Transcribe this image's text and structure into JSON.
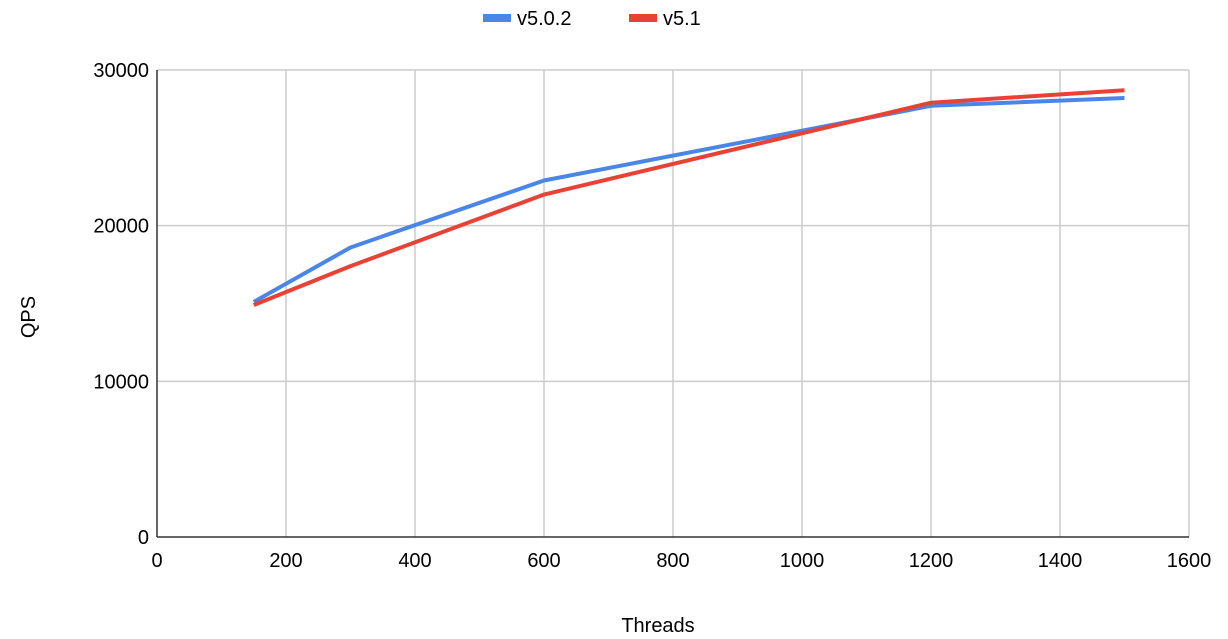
{
  "chart_data": {
    "type": "line",
    "xlabel": "Threads",
    "ylabel": "QPS",
    "xlim": [
      0,
      1600
    ],
    "ylim": [
      0,
      30000
    ],
    "x_ticks": [
      0,
      200,
      400,
      600,
      800,
      1000,
      1200,
      1400,
      1600
    ],
    "y_ticks": [
      0,
      10000,
      20000,
      30000
    ],
    "x_tick_labels": [
      "0",
      "200",
      "400",
      "600",
      "800",
      "1000",
      "1200",
      "1400",
      "1600"
    ],
    "y_tick_labels": [
      "0",
      "10000",
      "20000",
      "30000"
    ],
    "grid": true,
    "legend_position": "top-center",
    "series": [
      {
        "name": "v5.0.2",
        "color": "#4a86e8",
        "x": [
          150,
          300,
          600,
          1200,
          1500
        ],
        "y": [
          15100,
          18600,
          22900,
          27700,
          28200
        ]
      },
      {
        "name": "v5.1",
        "color": "#e94235",
        "x": [
          150,
          300,
          600,
          1200,
          1500
        ],
        "y": [
          14900,
          17400,
          22000,
          27900,
          28700
        ]
      }
    ]
  }
}
